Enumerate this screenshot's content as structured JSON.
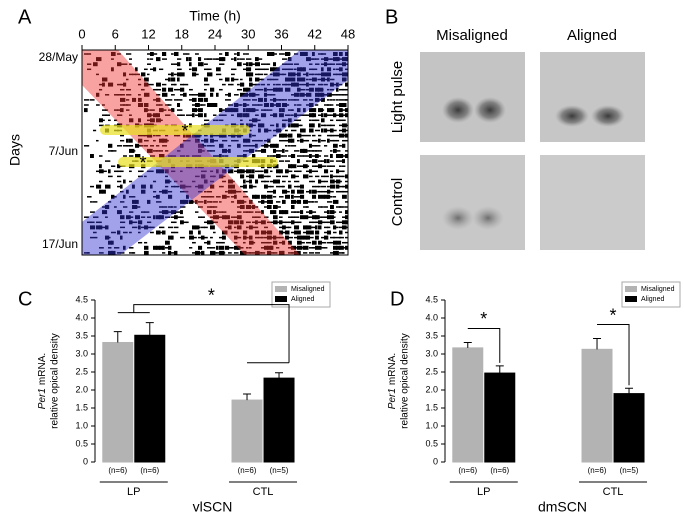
{
  "panel_labels": [
    "A",
    "B",
    "C",
    "D"
  ],
  "actogram": {
    "xlabel": "Time (h)",
    "xlim": [
      0,
      48
    ],
    "xticks": [
      0,
      6,
      12,
      18,
      24,
      30,
      36,
      42,
      48
    ],
    "ylabel": "Days",
    "day_labels": [
      "28/May",
      "7/Jun",
      "17/Jun"
    ],
    "markers": [
      "*",
      "*"
    ]
  },
  "images": {
    "columns": [
      "Misaligned",
      "Aligned"
    ],
    "rows": [
      "Light pulse",
      "Control"
    ]
  },
  "chart_data": [
    {
      "type": "bar",
      "ylabel_gene": "Per1",
      "ylabel_unit": "mRNA.",
      "ylabel_line2": "relative opical density",
      "categories": [
        "LP",
        "CTL"
      ],
      "sample_labels": [
        [
          "(n=6)",
          "(n=6)"
        ],
        [
          "(n=6)",
          "(n=5)"
        ]
      ],
      "xlabel": "vlSCN",
      "series": [
        {
          "name": "Misaligned",
          "color": "#b3b3b3",
          "values": [
            3.32,
            1.72
          ],
          "errors": [
            0.3,
            0.17
          ]
        },
        {
          "name": "Aligned",
          "color": "#000000",
          "values": [
            3.52,
            2.33
          ],
          "errors": [
            0.35,
            0.15
          ]
        }
      ],
      "ylim": [
        0,
        4.5
      ],
      "yticks": [
        0,
        0.5,
        {
          "value": 1,
          "label": "1.0"
        },
        1.5,
        {
          "value": 2,
          "label": "2.0"
        },
        2.5,
        {
          "value": 3,
          "label": "3.0"
        },
        3.5,
        {
          "value": 4,
          "label": "4.0"
        },
        4.5
      ],
      "legend": "top-right",
      "significance_labels": [
        "*"
      ]
    },
    {
      "type": "bar",
      "ylabel_gene": "Per1",
      "ylabel_unit": "mRNA.",
      "ylabel_line2": "relative opical density",
      "categories": [
        "LP",
        "CTL"
      ],
      "sample_labels": [
        [
          "(n=6)",
          "(n=6)"
        ],
        [
          "(n=6)",
          "(n=5)"
        ]
      ],
      "xlabel": "dmSCN",
      "series": [
        {
          "name": "Misaligned",
          "color": "#b3b3b3",
          "values": [
            3.17,
            3.13
          ],
          "errors": [
            0.15,
            0.3
          ]
        },
        {
          "name": "Aligned",
          "color": "#000000",
          "values": [
            2.47,
            1.9
          ],
          "errors": [
            0.2,
            0.15
          ]
        }
      ],
      "ylim": [
        0,
        4.5
      ],
      "yticks": [
        0,
        0.5,
        {
          "value": 1,
          "label": "1.0"
        },
        1.5,
        {
          "value": 2,
          "label": "2.0"
        },
        2.5,
        {
          "value": 3,
          "label": "3.0"
        },
        3.5,
        {
          "value": 4,
          "label": "4.0"
        },
        4.5
      ],
      "legend": "top-right",
      "significance_labels": [
        "*",
        "*"
      ]
    }
  ]
}
